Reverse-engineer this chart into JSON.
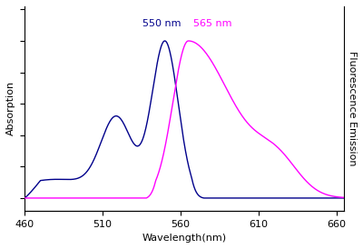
{
  "xlim": [
    460,
    665
  ],
  "xticks": [
    460,
    510,
    560,
    610,
    660
  ],
  "xlabel": "Wavelength(nm)",
  "ylabel_left": "Absorption",
  "ylabel_right": "Fluorescence Emission",
  "annotation_abs": "550 nm",
  "annotation_fl": "565 nm",
  "abs_color": "#00008B",
  "fl_color": "#FF00FF",
  "background_color": "#FFFFFF"
}
